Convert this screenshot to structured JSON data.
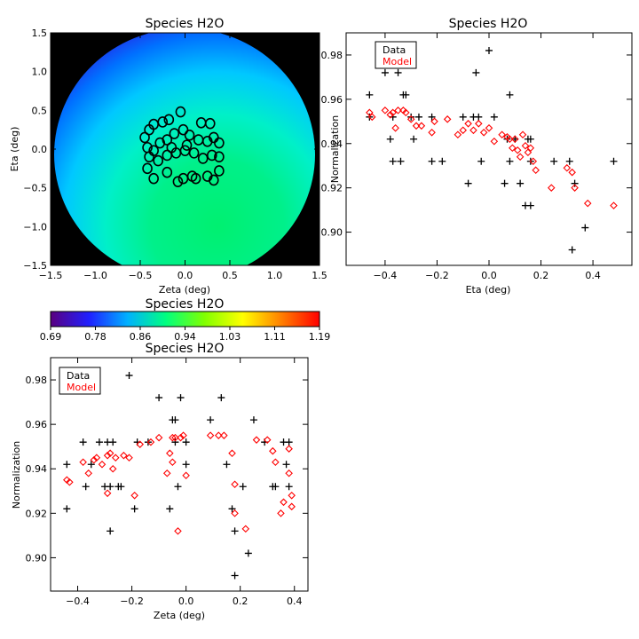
{
  "chart_data": [
    {
      "id": "map",
      "type": "heatmap",
      "title": "Species H2O",
      "xlabel": "Zeta (deg)",
      "ylabel": "Eta (deg)",
      "xlim": [
        -1.5,
        1.5
      ],
      "ylim": [
        -1.5,
        1.5
      ],
      "xticks": [
        "-1.5",
        "-1.0",
        "-0.5",
        "0.0",
        "0.5",
        "1.0",
        "1.5"
      ],
      "yticks": [
        "-1.5",
        "-1.0",
        "-0.5",
        "0.0",
        "0.5",
        "1.0",
        "1.5"
      ],
      "background": "#000000",
      "circles": [
        [
          -0.45,
          0.15
        ],
        [
          -0.4,
          0.25
        ],
        [
          -0.35,
          0.32
        ],
        [
          -0.25,
          0.35
        ],
        [
          -0.18,
          0.38
        ],
        [
          -0.05,
          0.48
        ],
        [
          0.18,
          0.34
        ],
        [
          0.28,
          0.33
        ],
        [
          -0.42,
          0.02
        ],
        [
          -0.35,
          -0.02
        ],
        [
          -0.28,
          0.08
        ],
        [
          -0.2,
          0.12
        ],
        [
          -0.12,
          0.2
        ],
        [
          -0.02,
          0.25
        ],
        [
          0.05,
          0.18
        ],
        [
          0.15,
          0.12
        ],
        [
          0.25,
          0.1
        ],
        [
          0.32,
          0.15
        ],
        [
          0.38,
          0.08
        ],
        [
          -0.4,
          -0.1
        ],
        [
          -0.3,
          -0.15
        ],
        [
          -0.2,
          -0.08
        ],
        [
          -0.1,
          -0.05
        ],
        [
          0.0,
          -0.02
        ],
        [
          0.1,
          -0.05
        ],
        [
          0.2,
          -0.12
        ],
        [
          0.3,
          -0.08
        ],
        [
          0.38,
          -0.1
        ],
        [
          -0.42,
          -0.25
        ],
        [
          -0.35,
          -0.38
        ],
        [
          -0.2,
          -0.3
        ],
        [
          -0.08,
          -0.42
        ],
        [
          -0.02,
          -0.38
        ],
        [
          0.08,
          -0.35
        ],
        [
          0.12,
          -0.38
        ],
        [
          0.25,
          -0.35
        ],
        [
          0.32,
          -0.4
        ],
        [
          0.38,
          -0.28
        ],
        [
          0.02,
          0.05
        ],
        [
          -0.15,
          0.02
        ]
      ]
    },
    {
      "id": "colorbar",
      "type": "heatmap",
      "title": "Species H2O",
      "range": [
        0.69,
        1.19
      ],
      "ticks": [
        "0.69",
        "0.78",
        "0.86",
        "0.94",
        "1.03",
        "1.11",
        "1.19"
      ],
      "stops": [
        "#5a0080",
        "#2020ff",
        "#00b0ff",
        "#00ff80",
        "#80ff00",
        "#ffff00",
        "#ff8000",
        "#ff0000"
      ]
    },
    {
      "id": "eta",
      "type": "scatter",
      "title": "Species H2O",
      "xlabel": "Eta (deg)",
      "ylabel": "Normalization",
      "xlim": [
        -0.55,
        0.55
      ],
      "ylim": [
        0.885,
        0.99
      ],
      "xticks": [
        "-0.4",
        "-0.2",
        "0.0",
        "0.2",
        "0.4"
      ],
      "yticks": [
        "0.90",
        "0.92",
        "0.94",
        "0.96",
        "0.98"
      ],
      "legend": [
        "Data",
        "Model"
      ],
      "legend_colors": [
        "#000000",
        "#ff0000"
      ],
      "data": [
        [
          -0.46,
          0.962
        ],
        [
          -0.46,
          0.952
        ],
        [
          -0.4,
          0.972
        ],
        [
          -0.38,
          0.942
        ],
        [
          -0.37,
          0.952
        ],
        [
          -0.37,
          0.932
        ],
        [
          -0.35,
          0.972
        ],
        [
          -0.34,
          0.932
        ],
        [
          -0.33,
          0.962
        ],
        [
          -0.32,
          0.962
        ],
        [
          -0.3,
          0.952
        ],
        [
          -0.29,
          0.942
        ],
        [
          -0.27,
          0.952
        ],
        [
          -0.22,
          0.952
        ],
        [
          -0.22,
          0.932
        ],
        [
          -0.18,
          0.932
        ],
        [
          -0.1,
          0.952
        ],
        [
          -0.08,
          0.922
        ],
        [
          -0.06,
          0.952
        ],
        [
          -0.05,
          0.972
        ],
        [
          -0.04,
          0.952
        ],
        [
          -0.03,
          0.932
        ],
        [
          0.0,
          0.982
        ],
        [
          0.02,
          0.952
        ],
        [
          0.06,
          0.922
        ],
        [
          0.07,
          0.942
        ],
        [
          0.08,
          0.962
        ],
        [
          0.08,
          0.932
        ],
        [
          0.1,
          0.942
        ],
        [
          0.12,
          0.922
        ],
        [
          0.14,
          0.912
        ],
        [
          0.15,
          0.942
        ],
        [
          0.16,
          0.942
        ],
        [
          0.16,
          0.932
        ],
        [
          0.16,
          0.912
        ],
        [
          0.25,
          0.932
        ],
        [
          0.31,
          0.932
        ],
        [
          0.32,
          0.892
        ],
        [
          0.33,
          0.922
        ],
        [
          0.37,
          0.902
        ],
        [
          0.48,
          0.932
        ]
      ],
      "model": [
        [
          -0.46,
          0.954
        ],
        [
          -0.45,
          0.952
        ],
        [
          -0.4,
          0.955
        ],
        [
          -0.38,
          0.953
        ],
        [
          -0.37,
          0.954
        ],
        [
          -0.36,
          0.947
        ],
        [
          -0.35,
          0.955
        ],
        [
          -0.33,
          0.955
        ],
        [
          -0.32,
          0.954
        ],
        [
          -0.3,
          0.951
        ],
        [
          -0.28,
          0.948
        ],
        [
          -0.26,
          0.948
        ],
        [
          -0.22,
          0.945
        ],
        [
          -0.21,
          0.95
        ],
        [
          -0.16,
          0.951
        ],
        [
          -0.12,
          0.944
        ],
        [
          -0.1,
          0.946
        ],
        [
          -0.08,
          0.949
        ],
        [
          -0.06,
          0.946
        ],
        [
          -0.04,
          0.949
        ],
        [
          -0.02,
          0.945
        ],
        [
          0.0,
          0.947
        ],
        [
          0.02,
          0.941
        ],
        [
          0.05,
          0.944
        ],
        [
          0.07,
          0.943
        ],
        [
          0.08,
          0.942
        ],
        [
          0.09,
          0.938
        ],
        [
          0.1,
          0.942
        ],
        [
          0.11,
          0.937
        ],
        [
          0.12,
          0.934
        ],
        [
          0.13,
          0.944
        ],
        [
          0.14,
          0.939
        ],
        [
          0.15,
          0.936
        ],
        [
          0.16,
          0.938
        ],
        [
          0.17,
          0.932
        ],
        [
          0.18,
          0.928
        ],
        [
          0.24,
          0.92
        ],
        [
          0.3,
          0.929
        ],
        [
          0.32,
          0.927
        ],
        [
          0.33,
          0.92
        ],
        [
          0.38,
          0.913
        ],
        [
          0.48,
          0.912
        ]
      ]
    },
    {
      "id": "zeta",
      "type": "scatter",
      "title": "Species H2O",
      "xlabel": "Zeta (deg)",
      "ylabel": "Normalization",
      "xlim": [
        -0.5,
        0.45
      ],
      "ylim": [
        0.885,
        0.99
      ],
      "xticks": [
        "-0.4",
        "-0.2",
        "0.0",
        "0.2",
        "0.4"
      ],
      "yticks": [
        "0.90",
        "0.92",
        "0.94",
        "0.96",
        "0.98"
      ],
      "legend": [
        "Data",
        "Model"
      ],
      "legend_colors": [
        "#000000",
        "#ff0000"
      ],
      "data": [
        [
          -0.44,
          0.942
        ],
        [
          -0.44,
          0.922
        ],
        [
          -0.38,
          0.952
        ],
        [
          -0.37,
          0.932
        ],
        [
          -0.35,
          0.942
        ],
        [
          -0.32,
          0.952
        ],
        [
          -0.3,
          0.932
        ],
        [
          -0.29,
          0.952
        ],
        [
          -0.28,
          0.932
        ],
        [
          -0.28,
          0.912
        ],
        [
          -0.27,
          0.952
        ],
        [
          -0.25,
          0.932
        ],
        [
          -0.24,
          0.932
        ],
        [
          -0.21,
          0.982
        ],
        [
          -0.19,
          0.922
        ],
        [
          -0.18,
          0.952
        ],
        [
          -0.14,
          0.952
        ],
        [
          -0.1,
          0.972
        ],
        [
          -0.06,
          0.922
        ],
        [
          -0.05,
          0.962
        ],
        [
          -0.04,
          0.962
        ],
        [
          -0.04,
          0.952
        ],
        [
          -0.03,
          0.932
        ],
        [
          -0.02,
          0.972
        ],
        [
          0.0,
          0.942
        ],
        [
          0.0,
          0.952
        ],
        [
          0.09,
          0.962
        ],
        [
          0.13,
          0.972
        ],
        [
          0.15,
          0.942
        ],
        [
          0.17,
          0.922
        ],
        [
          0.18,
          0.912
        ],
        [
          0.18,
          0.892
        ],
        [
          0.21,
          0.932
        ],
        [
          0.23,
          0.902
        ],
        [
          0.25,
          0.962
        ],
        [
          0.29,
          0.952
        ],
        [
          0.32,
          0.932
        ],
        [
          0.33,
          0.932
        ],
        [
          0.36,
          0.952
        ],
        [
          0.37,
          0.942
        ],
        [
          0.38,
          0.952
        ],
        [
          0.38,
          0.932
        ]
      ],
      "model": [
        [
          -0.44,
          0.935
        ],
        [
          -0.43,
          0.934
        ],
        [
          -0.38,
          0.943
        ],
        [
          -0.36,
          0.938
        ],
        [
          -0.34,
          0.944
        ],
        [
          -0.33,
          0.945
        ],
        [
          -0.31,
          0.942
        ],
        [
          -0.29,
          0.929
        ],
        [
          -0.29,
          0.946
        ],
        [
          -0.28,
          0.947
        ],
        [
          -0.27,
          0.94
        ],
        [
          -0.26,
          0.945
        ],
        [
          -0.23,
          0.946
        ],
        [
          -0.21,
          0.945
        ],
        [
          -0.19,
          0.928
        ],
        [
          -0.17,
          0.951
        ],
        [
          -0.13,
          0.952
        ],
        [
          -0.1,
          0.954
        ],
        [
          -0.07,
          0.938
        ],
        [
          -0.06,
          0.947
        ],
        [
          -0.05,
          0.943
        ],
        [
          -0.05,
          0.954
        ],
        [
          -0.04,
          0.954
        ],
        [
          -0.03,
          0.912
        ],
        [
          -0.02,
          0.954
        ],
        [
          -0.01,
          0.955
        ],
        [
          0.0,
          0.937
        ],
        [
          0.09,
          0.955
        ],
        [
          0.12,
          0.955
        ],
        [
          0.14,
          0.955
        ],
        [
          0.17,
          0.947
        ],
        [
          0.18,
          0.92
        ],
        [
          0.18,
          0.933
        ],
        [
          0.22,
          0.913
        ],
        [
          0.26,
          0.953
        ],
        [
          0.3,
          0.953
        ],
        [
          0.32,
          0.948
        ],
        [
          0.33,
          0.943
        ],
        [
          0.35,
          0.92
        ],
        [
          0.36,
          0.925
        ],
        [
          0.38,
          0.949
        ],
        [
          0.38,
          0.938
        ],
        [
          0.39,
          0.928
        ],
        [
          0.39,
          0.923
        ]
      ]
    }
  ]
}
